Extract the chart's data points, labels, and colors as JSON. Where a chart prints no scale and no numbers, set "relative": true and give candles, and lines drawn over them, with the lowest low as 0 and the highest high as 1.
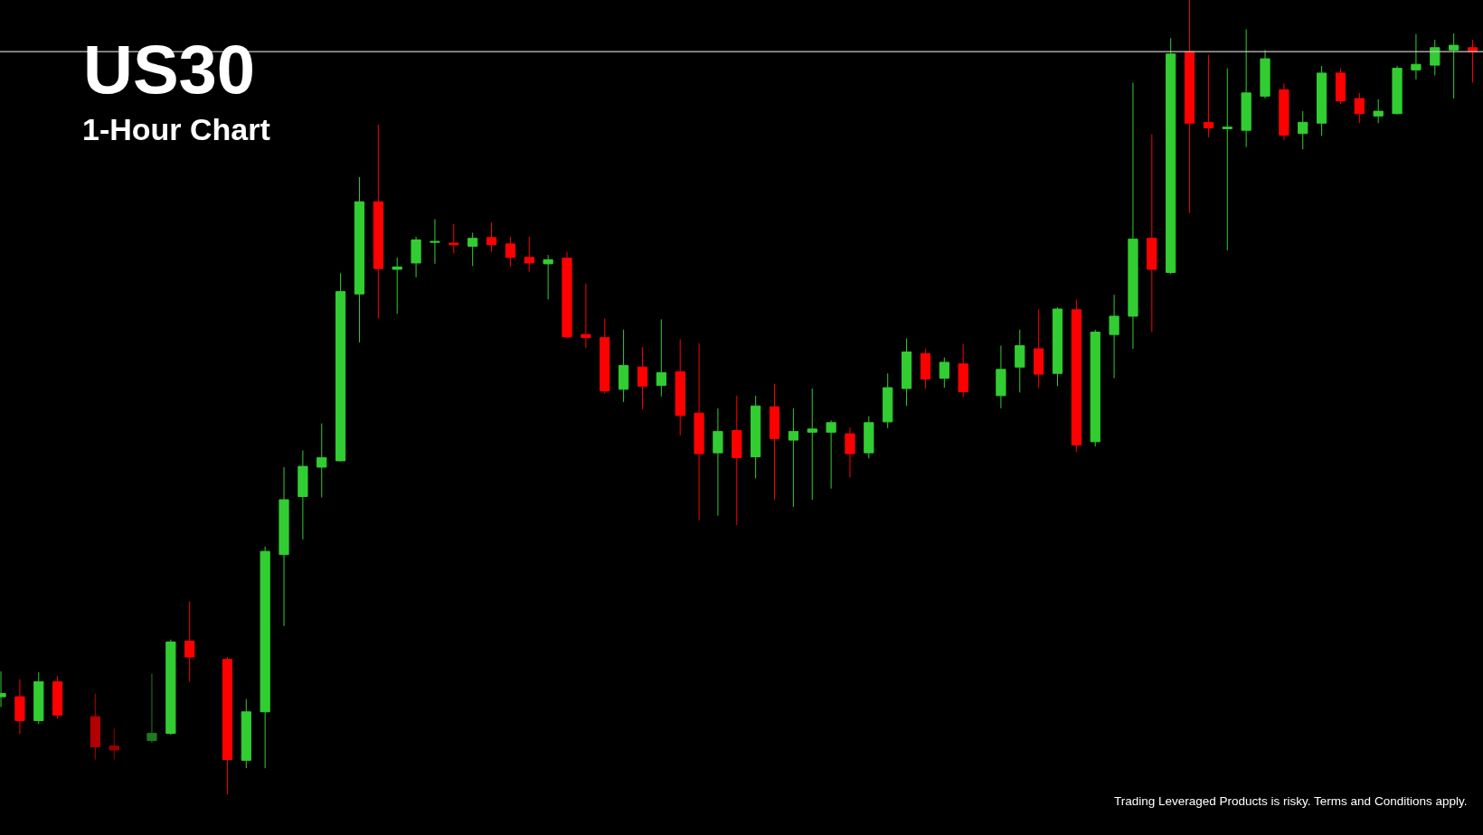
{
  "chart_data": {
    "type": "candlestick",
    "title": "US30",
    "subtitle": "1-Hour Chart",
    "relative": true,
    "tick_labels": false,
    "grid": false,
    "legend": false,
    "annotations": [
      "Trading Leveraged Products is risky. Terms and Conditions apply."
    ],
    "ref_lines": [
      {
        "axis": "y",
        "value": 0.935,
        "color": "#c8c8c8"
      }
    ],
    "categories": [
      null,
      null,
      null,
      null,
      null,
      null,
      null,
      null,
      null,
      null,
      null,
      null,
      null,
      null,
      null,
      null,
      null,
      null,
      null,
      null,
      null,
      null,
      null,
      null,
      null,
      null,
      null,
      null,
      null,
      null,
      null,
      null,
      null,
      null,
      null,
      null,
      null,
      null,
      null,
      null,
      null,
      null,
      null,
      null,
      null,
      null,
      null,
      null,
      null,
      null,
      null,
      null,
      null,
      null,
      null,
      null,
      null,
      null,
      null,
      null,
      null,
      null,
      null,
      null,
      null,
      null,
      null,
      null,
      null,
      null,
      null,
      null,
      null,
      null,
      null,
      null,
      null,
      null,
      null
    ],
    "ohlc": [
      [
        0.123,
        0.155,
        0.11,
        0.127
      ],
      [
        0.123,
        0.145,
        0.076,
        0.093
      ],
      [
        0.093,
        0.154,
        0.089,
        0.142
      ],
      [
        0.142,
        0.149,
        0.095,
        0.1
      ],
      null,
      [
        0.098,
        0.127,
        0.044,
        0.06
      ],
      [
        0.061,
        0.083,
        0.044,
        0.056
      ],
      null,
      [
        0.068,
        0.152,
        0.065,
        0.077
      ],
      [
        0.077,
        0.195,
        0.075,
        0.192
      ],
      [
        0.193,
        0.243,
        0.142,
        0.173
      ],
      null,
      [
        0.17,
        0.173,
        0.0,
        0.044
      ],
      [
        0.043,
        0.12,
        0.033,
        0.104
      ],
      [
        0.104,
        0.312,
        0.033,
        0.306
      ],
      [
        0.302,
        0.412,
        0.212,
        0.371
      ],
      [
        0.375,
        0.433,
        0.321,
        0.413
      ],
      [
        0.412,
        0.467,
        0.374,
        0.424
      ],
      [
        0.42,
        0.656,
        0.419,
        0.633
      ],
      [
        0.63,
        0.777,
        0.569,
        0.746
      ],
      [
        0.746,
        0.843,
        0.599,
        0.662
      ],
      [
        0.661,
        0.676,
        0.605,
        0.664
      ],
      [
        0.669,
        0.702,
        0.651,
        0.698
      ],
      [
        0.695,
        0.724,
        0.668,
        0.696
      ],
      [
        0.694,
        0.718,
        0.681,
        0.692
      ],
      [
        0.69,
        0.707,
        0.665,
        0.7
      ],
      [
        0.701,
        0.72,
        0.683,
        0.692
      ],
      [
        0.693,
        0.702,
        0.664,
        0.676
      ],
      [
        0.676,
        0.702,
        0.658,
        0.669
      ],
      [
        0.668,
        0.679,
        0.623,
        0.673
      ],
      [
        0.675,
        0.683,
        0.574,
        0.576
      ],
      [
        0.579,
        0.643,
        0.562,
        0.575
      ],
      [
        0.575,
        0.599,
        0.505,
        0.508
      ],
      [
        0.51,
        0.585,
        0.494,
        0.54
      ],
      [
        0.538,
        0.563,
        0.485,
        0.514
      ],
      [
        0.515,
        0.598,
        0.501,
        0.531
      ],
      [
        0.532,
        0.573,
        0.452,
        0.477
      ],
      [
        0.48,
        0.568,
        0.345,
        0.429
      ],
      [
        0.43,
        0.486,
        0.351,
        0.457
      ],
      [
        0.458,
        0.502,
        0.339,
        0.424
      ],
      [
        0.425,
        0.502,
        0.398,
        0.489
      ],
      [
        0.488,
        0.517,
        0.371,
        0.448
      ],
      [
        0.446,
        0.486,
        0.362,
        0.457
      ],
      [
        0.456,
        0.511,
        0.371,
        0.46
      ],
      [
        0.456,
        0.471,
        0.385,
        0.468
      ],
      [
        0.454,
        0.462,
        0.399,
        0.429
      ],
      [
        0.43,
        0.476,
        0.423,
        0.468
      ],
      [
        0.469,
        0.53,
        0.461,
        0.512
      ],
      [
        0.511,
        0.574,
        0.489,
        0.557
      ],
      [
        0.555,
        0.561,
        0.511,
        0.523
      ],
      [
        0.524,
        0.55,
        0.512,
        0.544
      ],
      [
        0.542,
        0.567,
        0.5,
        0.507
      ],
      null,
      [
        0.502,
        0.565,
        0.486,
        0.535
      ],
      [
        0.538,
        0.585,
        0.506,
        0.565
      ],
      [
        0.561,
        0.611,
        0.512,
        0.529
      ],
      [
        0.53,
        0.613,
        0.514,
        0.611
      ],
      [
        0.61,
        0.623,
        0.431,
        0.44
      ],
      [
        0.444,
        0.585,
        0.438,
        0.582
      ],
      [
        0.579,
        0.629,
        0.524,
        0.602
      ],
      [
        0.602,
        0.896,
        0.561,
        0.699
      ],
      [
        0.7,
        0.831,
        0.582,
        0.661
      ],
      [
        0.657,
        0.952,
        0.655,
        0.932
      ],
      [
        0.935,
        1.0,
        0.732,
        0.845
      ],
      [
        0.846,
        0.931,
        0.827,
        0.839
      ],
      [
        0.838,
        0.914,
        0.685,
        0.84
      ],
      [
        0.836,
        0.963,
        0.815,
        0.883
      ],
      [
        0.879,
        0.937,
        0.876,
        0.926
      ],
      [
        0.887,
        0.895,
        0.824,
        0.83
      ],
      [
        0.832,
        0.86,
        0.812,
        0.846
      ],
      [
        0.845,
        0.917,
        0.829,
        0.908
      ],
      [
        0.908,
        0.914,
        0.869,
        0.873
      ],
      [
        0.876,
        0.883,
        0.845,
        0.857
      ],
      [
        0.854,
        0.875,
        0.845,
        0.86
      ],
      [
        0.857,
        0.917,
        0.856,
        0.914
      ],
      [
        0.912,
        0.957,
        0.9,
        0.919
      ],
      [
        0.918,
        0.95,
        0.905,
        0.94
      ],
      [
        0.937,
        0.958,
        0.876,
        0.943
      ],
      [
        0.94,
        0.95,
        0.896,
        0.935
      ]
    ],
    "colors": [
      "#32cd32",
      "#ff0000",
      "#32cd32",
      "#ff0000",
      null,
      "#b00000",
      "#990000",
      null,
      "#1e7b1e",
      "#32cd32",
      "#ff0000",
      null,
      "#ff0000",
      "#32cd32",
      "#32cd32",
      "#32cd32",
      "#32cd32",
      "#32cd32",
      "#32cd32",
      "#32cd32",
      "#ff0000",
      "#32cd32",
      "#32cd32",
      "#32cd32",
      "#ff0000",
      "#32cd32",
      "#ff0000",
      "#ff0000",
      "#ff0000",
      "#32cd32",
      "#ff0000",
      "#ff0000",
      "#ff0000",
      "#32cd32",
      "#ff0000",
      "#32cd32",
      "#ff0000",
      "#ff0000",
      "#32cd32",
      "#ff0000",
      "#32cd32",
      "#ff0000",
      "#32cd32",
      "#32cd32",
      "#32cd32",
      "#ff0000",
      "#32cd32",
      "#32cd32",
      "#32cd32",
      "#ff0000",
      "#32cd32",
      "#ff0000",
      null,
      "#32cd32",
      "#32cd32",
      "#ff0000",
      "#32cd32",
      "#ff0000",
      "#32cd32",
      "#32cd32",
      "#32cd32",
      "#ff0000",
      "#32cd32",
      "#ff0000",
      "#ff0000",
      "#32cd32",
      "#32cd32",
      "#32cd32",
      "#ff0000",
      "#32cd32",
      "#32cd32",
      "#ff0000",
      "#ff0000",
      "#32cd32",
      "#32cd32",
      "#32cd32",
      "#32cd32",
      "#32cd32",
      "#ff0000"
    ]
  }
}
